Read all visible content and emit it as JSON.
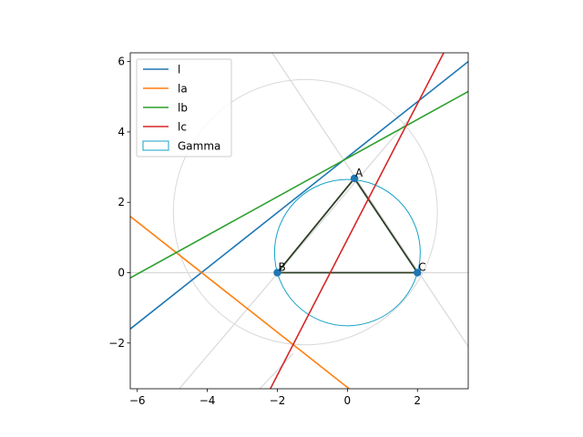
{
  "chart_data": {
    "type": "line",
    "title": "",
    "xlabel": "",
    "ylabel": "",
    "xlim": [
      -6.2,
      3.45
    ],
    "ylim": [
      -3.3,
      6.25
    ],
    "xticks": [
      -6,
      -4,
      -2,
      0,
      2
    ],
    "yticks": [
      -2,
      0,
      2,
      4,
      6
    ],
    "xtick_labels": [
      "−6",
      "−4",
      "−2",
      "0",
      "2"
    ],
    "ytick_labels": [
      "−2",
      "0",
      "2",
      "4",
      "6"
    ],
    "grid": false,
    "legend_position": "upper-left",
    "points": [
      {
        "name": "A",
        "x": 0.2,
        "y": 2.68
      },
      {
        "name": "B",
        "x": -2.0,
        "y": 0.0
      },
      {
        "name": "C",
        "x": 2.0,
        "y": 0.0
      }
    ],
    "triangle_color": "#2f3f26",
    "series": [
      {
        "name": "l",
        "color": "#1f77b4",
        "p1": [
          -6.2,
          -1.6
        ],
        "p2": [
          3.45,
          6.0
        ]
      },
      {
        "name": "la",
        "color": "#ff7f0e",
        "p1": [
          -6.2,
          1.6
        ],
        "p2": [
          0.05,
          -3.3
        ]
      },
      {
        "name": "lb",
        "color": "#2ca02c",
        "p1": [
          -6.2,
          -0.15
        ],
        "p2": [
          3.45,
          5.15
        ]
      },
      {
        "name": "lc",
        "color": "#d62728",
        "p1": [
          -2.2,
          -3.3
        ],
        "p2": [
          2.75,
          6.25
        ]
      }
    ],
    "circles": [
      {
        "name": "Gamma",
        "color": "#17a2c8",
        "cx": 0.0,
        "cy": 0.57,
        "r": 2.08,
        "legend": true
      },
      {
        "name": "",
        "color": "#d9d9d9",
        "cx": -1.2,
        "cy": 1.72,
        "r": 3.77,
        "legend": false
      }
    ],
    "guide_lines": [
      {
        "color": "#d9d9d9",
        "p1": [
          -6.2,
          0.0
        ],
        "p2": [
          3.45,
          0.0
        ]
      },
      {
        "color": "#d9d9d9",
        "p1": [
          -2.15,
          6.25
        ],
        "p2": [
          3.45,
          -2.1
        ]
      },
      {
        "color": "#d9d9d9",
        "p1": [
          -4.8,
          -3.3
        ],
        "p2": [
          1.7,
          4.3
        ]
      },
      {
        "color": "#d9d9d9",
        "p1": [
          -2.5,
          -3.3
        ],
        "p2": [
          -1.55,
          -2.3
        ]
      }
    ]
  }
}
